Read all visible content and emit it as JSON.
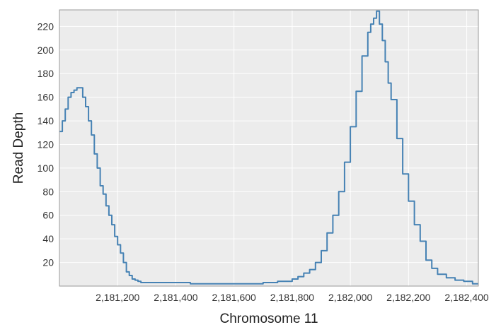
{
  "chart_data": {
    "type": "line",
    "title": "",
    "xlabel": "Chromosome 11",
    "ylabel": "Read Depth",
    "xlim": [
      2181000,
      2182440
    ],
    "ylim": [
      0,
      234
    ],
    "xticks": [
      2181200,
      2181400,
      2181600,
      2181800,
      2182000,
      2182200,
      2182400
    ],
    "xtick_labels": [
      "2,181,200",
      "2,181,400",
      "2,181,600",
      "2,181,800",
      "2,182,000",
      "2,182,200",
      "2,182,400"
    ],
    "yticks": [
      20,
      40,
      60,
      80,
      100,
      120,
      140,
      160,
      180,
      200,
      220
    ],
    "ytick_labels": [
      "20",
      "40",
      "60",
      "80",
      "100",
      "120",
      "140",
      "160",
      "180",
      "200",
      "220"
    ],
    "grid": true,
    "legend": "none",
    "series": [
      {
        "color": "#4682b4",
        "x": [
          2181000,
          2181010,
          2181020,
          2181030,
          2181040,
          2181050,
          2181060,
          2181070,
          2181080,
          2181090,
          2181100,
          2181110,
          2181120,
          2181130,
          2181140,
          2181150,
          2181160,
          2181170,
          2181180,
          2181190,
          2181200,
          2181210,
          2181220,
          2181230,
          2181240,
          2181250,
          2181260,
          2181270,
          2181280,
          2181300,
          2181350,
          2181400,
          2181450,
          2181500,
          2181550,
          2181600,
          2181650,
          2181700,
          2181750,
          2181800,
          2181820,
          2181840,
          2181860,
          2181880,
          2181900,
          2181920,
          2181940,
          2181960,
          2181980,
          2182000,
          2182020,
          2182040,
          2182060,
          2182070,
          2182080,
          2182090,
          2182100,
          2182110,
          2182120,
          2182130,
          2182140,
          2182160,
          2182180,
          2182200,
          2182220,
          2182240,
          2182260,
          2182280,
          2182300,
          2182330,
          2182360,
          2182390,
          2182420,
          2182440
        ],
        "y": [
          131,
          140,
          150,
          160,
          164,
          166,
          168,
          168,
          160,
          152,
          140,
          128,
          112,
          100,
          85,
          78,
          68,
          60,
          52,
          42,
          35,
          28,
          20,
          12,
          9,
          6,
          5,
          4,
          3,
          3,
          3,
          3,
          2,
          2,
          2,
          2,
          2,
          3,
          4,
          6,
          8,
          11,
          14,
          20,
          30,
          45,
          60,
          80,
          105,
          135,
          165,
          195,
          215,
          222,
          227,
          233,
          222,
          208,
          190,
          172,
          158,
          125,
          95,
          72,
          52,
          38,
          22,
          15,
          10,
          7,
          5,
          4,
          2,
          2
        ]
      }
    ]
  }
}
